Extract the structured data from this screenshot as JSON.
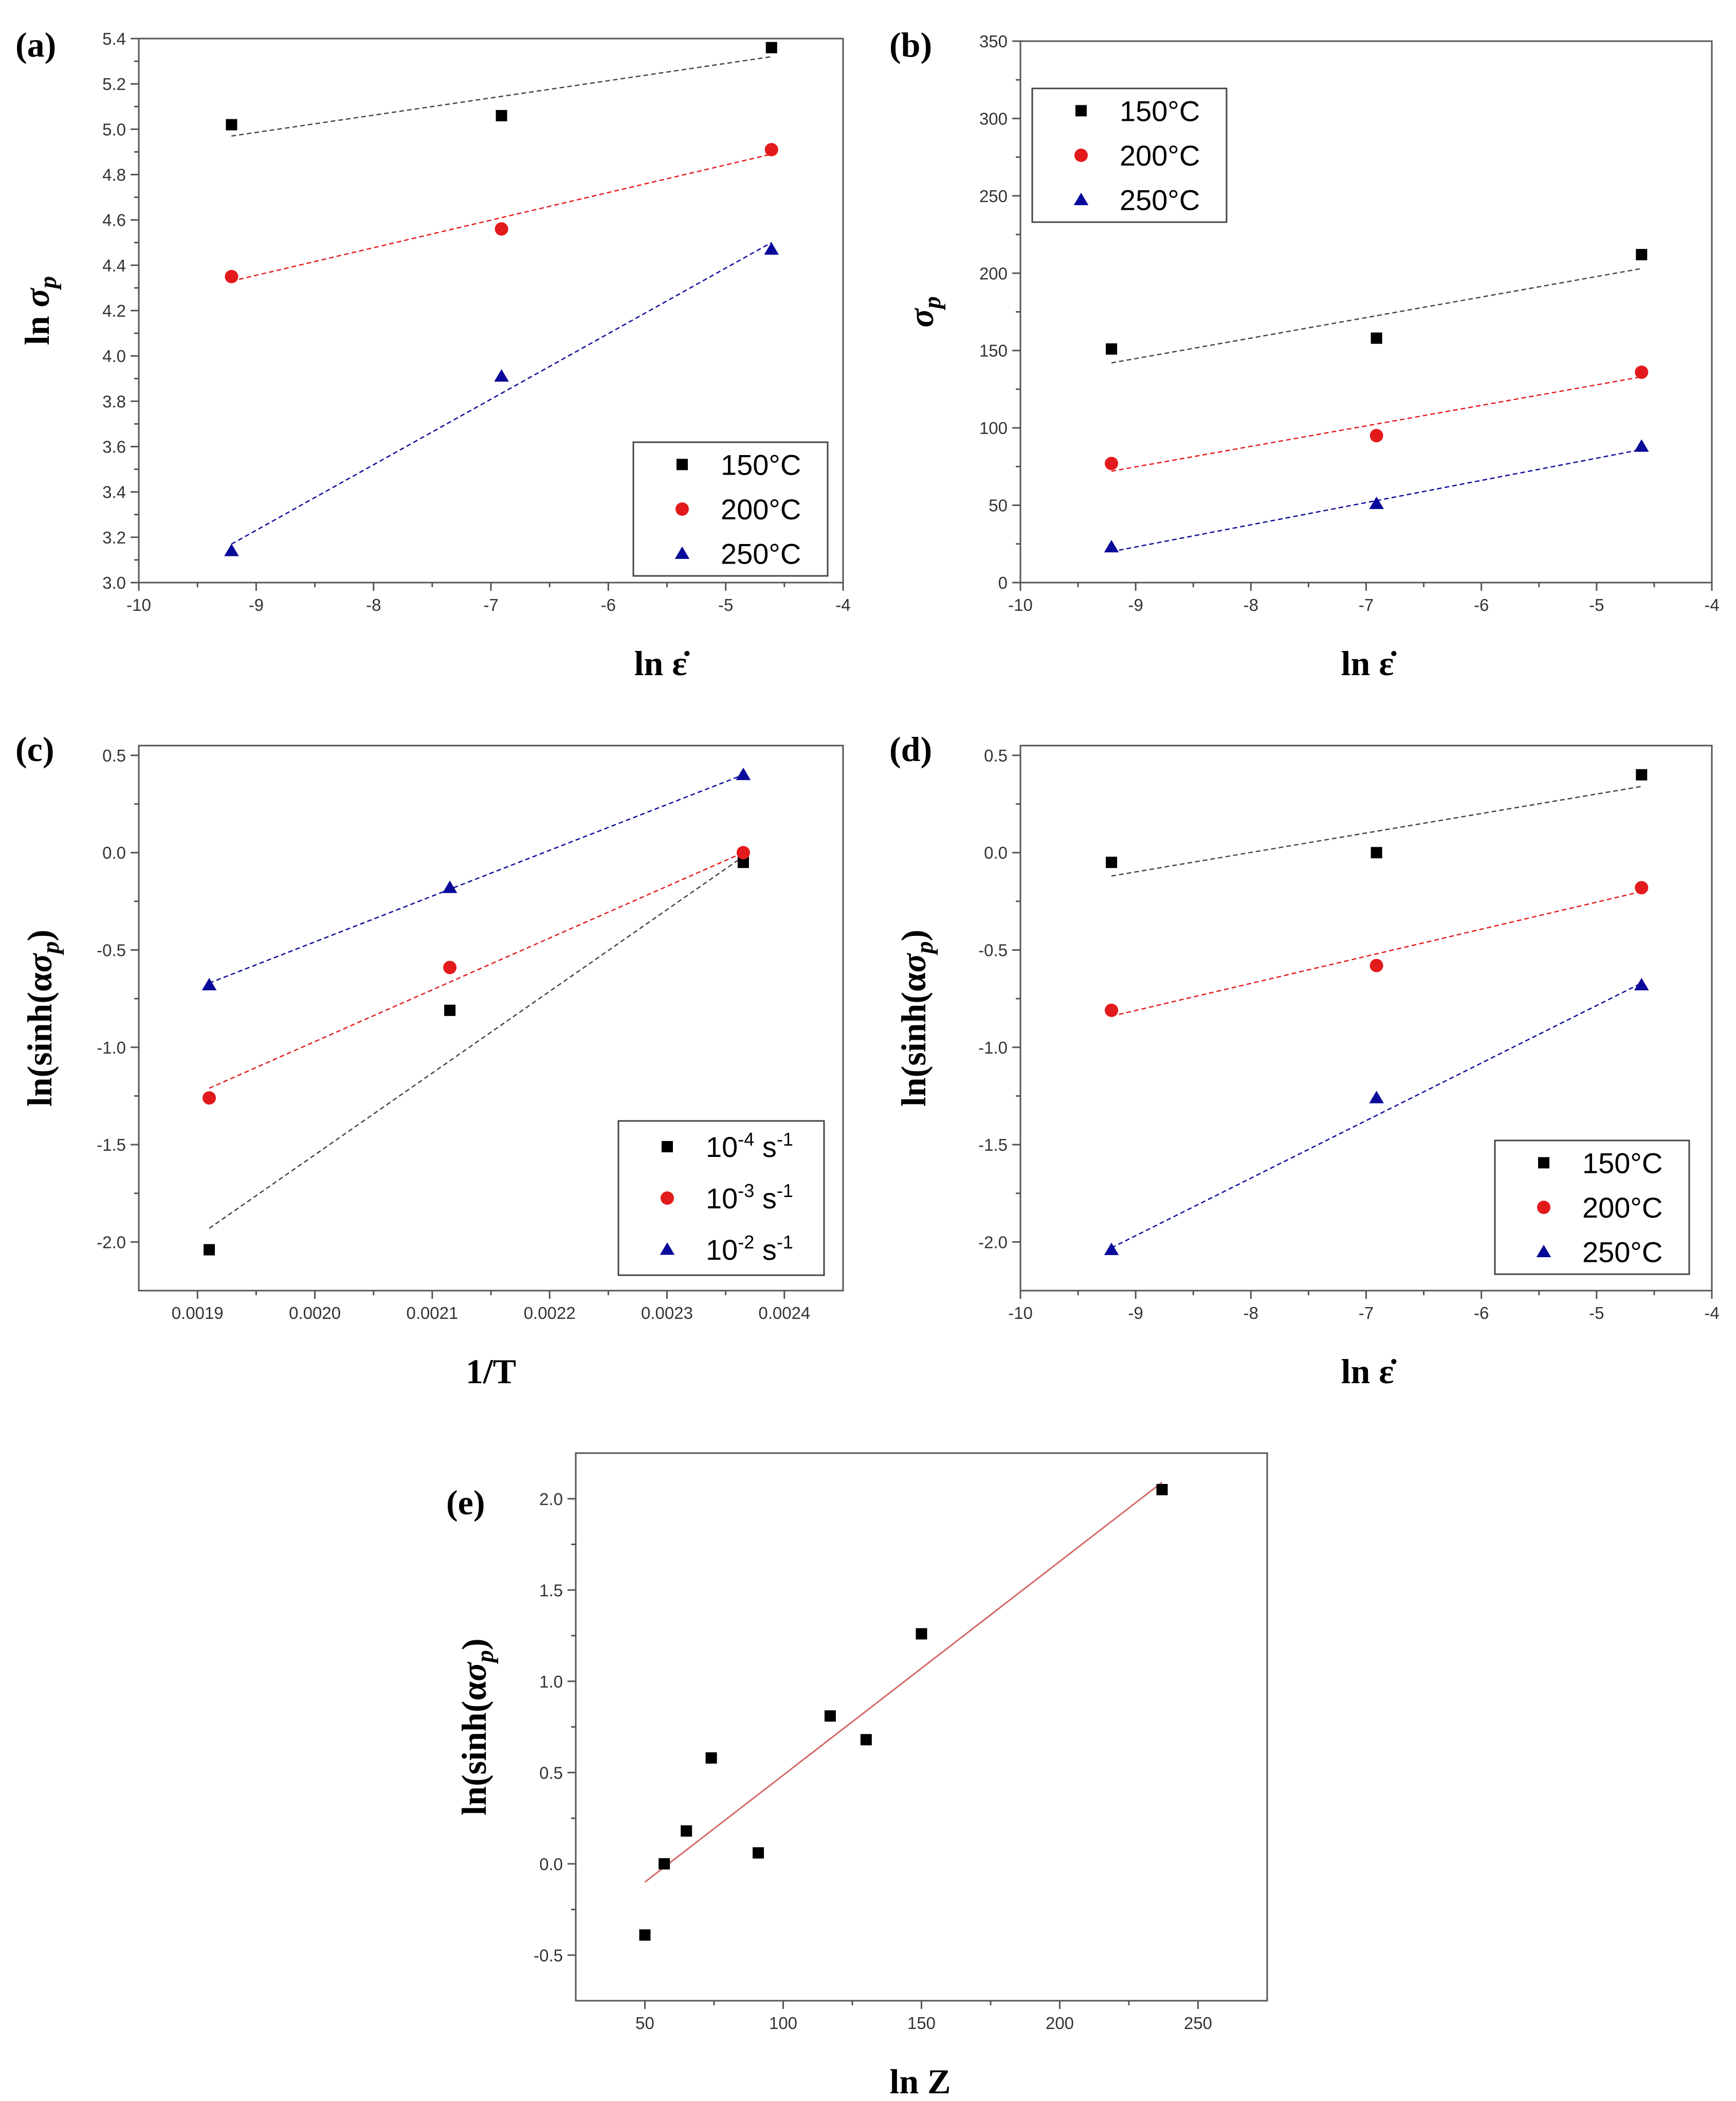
{
  "colors": {
    "black": "#000000",
    "red": "#e31a1c",
    "blue": "#0a0a9a",
    "fit_red_e": "#d46a6a",
    "fit_gray": "#555555"
  },
  "chart_data": [
    {
      "id": "a",
      "panel_label": "(a)",
      "type": "scatter",
      "xlabel": "ln ε̇",
      "ylabel": "ln σp",
      "xlim": [
        -10,
        -4
      ],
      "ylim": [
        3.0,
        5.4
      ],
      "xticks": [
        -10,
        -9,
        -8,
        -7,
        -6,
        -5,
        -4
      ],
      "xtick_labels": [
        "-10",
        "-9",
        "-8",
        "-7",
        "-6",
        "-5",
        "-4"
      ],
      "yticks": [
        3.0,
        3.2,
        3.4,
        3.6,
        3.8,
        4.0,
        4.2,
        4.4,
        4.6,
        4.8,
        5.0,
        5.2,
        5.4
      ],
      "ytick_labels": [
        "3.0",
        "3.2",
        "3.4",
        "3.6",
        "3.8",
        "4.0",
        "4.2",
        "4.4",
        "4.6",
        "4.8",
        "5.0",
        "5.2",
        "5.4"
      ],
      "legend_position": "bottom-right",
      "series": [
        {
          "name": "150°C",
          "marker": "square",
          "color": "#000000",
          "x": [
            -9.21,
            -6.91,
            -4.61
          ],
          "y": [
            5.02,
            5.06,
            5.36
          ],
          "fit": {
            "x": [
              -9.21,
              -4.61
            ],
            "y": [
              4.97,
              5.32
            ]
          }
        },
        {
          "name": "200°C",
          "marker": "circle",
          "color": "#e31a1c",
          "x": [
            -9.21,
            -6.91,
            -4.61
          ],
          "y": [
            4.35,
            4.56,
            4.91
          ],
          "fit": {
            "x": [
              -9.21,
              -4.61
            ],
            "y": [
              4.33,
              4.89
            ]
          }
        },
        {
          "name": "250°C",
          "marker": "triangle",
          "color": "#0a0a9a",
          "x": [
            -9.21,
            -6.91,
            -4.61
          ],
          "y": [
            3.14,
            3.91,
            4.47
          ],
          "fit": {
            "x": [
              -9.21,
              -4.61
            ],
            "y": [
              3.17,
              4.5
            ]
          }
        }
      ]
    },
    {
      "id": "b",
      "panel_label": "(b)",
      "type": "scatter",
      "xlabel": "ln ε̇",
      "ylabel": "σp",
      "xlim": [
        -10,
        -4
      ],
      "ylim": [
        0,
        350
      ],
      "xticks": [
        -10,
        -9,
        -8,
        -7,
        -6,
        -5,
        -4
      ],
      "xtick_labels": [
        "-10",
        "-9",
        "-8",
        "-7",
        "-6",
        "-5",
        "-4"
      ],
      "yticks": [
        0,
        50,
        100,
        150,
        200,
        250,
        300,
        350
      ],
      "ytick_labels": [
        "0",
        "50",
        "100",
        "150",
        "200",
        "250",
        "300",
        "350"
      ],
      "legend_position": "top-left",
      "series": [
        {
          "name": "150°C",
          "marker": "square",
          "color": "#000000",
          "x": [
            -9.21,
            -6.91,
            -4.61
          ],
          "y": [
            151,
            158,
            212
          ],
          "fit": {
            "x": [
              -9.21,
              -4.61
            ],
            "y": [
              142,
              203
            ]
          }
        },
        {
          "name": "200°C",
          "marker": "circle",
          "color": "#e31a1c",
          "x": [
            -9.21,
            -6.91,
            -4.61
          ],
          "y": [
            77,
            95,
            136
          ],
          "fit": {
            "x": [
              -9.21,
              -4.61
            ],
            "y": [
              72,
              133
            ]
          }
        },
        {
          "name": "250°C",
          "marker": "triangle",
          "color": "#0a0a9a",
          "x": [
            -9.21,
            -6.91,
            -4.61
          ],
          "y": [
            23,
            51,
            88
          ],
          "fit": {
            "x": [
              -9.21,
              -4.61
            ],
            "y": [
              20,
              86
            ]
          }
        }
      ]
    },
    {
      "id": "c",
      "panel_label": "(c)",
      "type": "scatter",
      "xlabel": "1/T",
      "ylabel": "ln(sinh(ασp)",
      "xlim": [
        0.00185,
        0.00245
      ],
      "ylim": [
        -2.25,
        0.55
      ],
      "xticks": [
        0.0019,
        0.002,
        0.0021,
        0.0022,
        0.0023,
        0.0024
      ],
      "xtick_labels": [
        "0.0019",
        "0.0020",
        "0.0021",
        "0.0022",
        "0.0023",
        "0.0024"
      ],
      "yticks": [
        -2.0,
        -1.5,
        -1.0,
        -0.5,
        0.0,
        0.5
      ],
      "ytick_labels": [
        "-2.0",
        "-1.5",
        "-1.0",
        "-0.5",
        "0.0",
        "0.5"
      ],
      "legend_position": "bottom-right",
      "series": [
        {
          "name": "10",
          "name_exp": "-4",
          "name_unit": " s",
          "name_unit_exp": "-1",
          "marker": "square",
          "color": "#000000",
          "x": [
            0.00191,
            0.002115,
            0.002365
          ],
          "y": [
            -2.04,
            -0.81,
            -0.05
          ],
          "fit": {
            "x": [
              0.00191,
              0.002365
            ],
            "y": [
              -1.93,
              -0.02
            ]
          }
        },
        {
          "name": "10",
          "name_exp": "-3",
          "name_unit": " s",
          "name_unit_exp": "-1",
          "marker": "circle",
          "color": "#e31a1c",
          "x": [
            0.00191,
            0.002115,
            0.002365
          ],
          "y": [
            -1.26,
            -0.59,
            0.0
          ],
          "fit": {
            "x": [
              0.00191,
              0.002365
            ],
            "y": [
              -1.21,
              0.0
            ]
          }
        },
        {
          "name": "10",
          "name_exp": "-2",
          "name_unit": " s",
          "name_unit_exp": "-1",
          "marker": "triangle",
          "color": "#0a0a9a",
          "x": [
            0.00191,
            0.002115,
            0.002365
          ],
          "y": [
            -0.68,
            -0.18,
            0.4
          ],
          "fit": {
            "x": [
              0.00191,
              0.002365
            ],
            "y": [
              -0.67,
              0.4
            ]
          }
        }
      ]
    },
    {
      "id": "d",
      "panel_label": "(d)",
      "type": "scatter",
      "xlabel": "ln ε̇",
      "ylabel": "ln(sinh(ασp)",
      "xlim": [
        -10,
        -4
      ],
      "ylim": [
        -2.25,
        0.55
      ],
      "xticks": [
        -10,
        -9,
        -8,
        -7,
        -6,
        -5,
        -4
      ],
      "xtick_labels": [
        "-10",
        "-9",
        "-8",
        "-7",
        "-6",
        "-5",
        "-4"
      ],
      "yticks": [
        -2.0,
        -1.5,
        -1.0,
        -0.5,
        0.0,
        0.5
      ],
      "ytick_labels": [
        "-2.0",
        "-1.5",
        "-1.0",
        "-0.5",
        "0.0",
        "0.5"
      ],
      "legend_position": "bottom-right",
      "series": [
        {
          "name": "150°C",
          "marker": "square",
          "color": "#000000",
          "x": [
            -9.21,
            -6.91,
            -4.61
          ],
          "y": [
            -0.05,
            0.0,
            0.4
          ],
          "fit": {
            "x": [
              -9.21,
              -4.61
            ],
            "y": [
              -0.12,
              0.34
            ]
          }
        },
        {
          "name": "200°C",
          "marker": "circle",
          "color": "#e31a1c",
          "x": [
            -9.21,
            -6.91,
            -4.61
          ],
          "y": [
            -0.81,
            -0.58,
            -0.18
          ],
          "fit": {
            "x": [
              -9.21,
              -4.61
            ],
            "y": [
              -0.84,
              -0.2
            ]
          }
        },
        {
          "name": "250°C",
          "marker": "triangle",
          "color": "#0a0a9a",
          "x": [
            -9.21,
            -6.91,
            -4.61
          ],
          "y": [
            -2.04,
            -1.26,
            -0.68
          ],
          "fit": {
            "x": [
              -9.21,
              -4.61
            ],
            "y": [
              -2.03,
              -0.67
            ]
          }
        }
      ]
    },
    {
      "id": "e",
      "panel_label": "(e)",
      "type": "scatter",
      "xlabel": "ln Z",
      "ylabel": "ln(sinh(ασp)",
      "xlim": [
        25,
        275
      ],
      "ylim": [
        -0.75,
        2.25
      ],
      "xticks": [
        50,
        100,
        150,
        200,
        250
      ],
      "xtick_labels": [
        "50",
        "100",
        "150",
        "200",
        "250"
      ],
      "yticks": [
        -0.5,
        0.0,
        0.5,
        1.0,
        1.5,
        2.0
      ],
      "ytick_labels": [
        "-0.5",
        "0.0",
        "0.5",
        "1.0",
        "1.5",
        "2.0"
      ],
      "legend_position": "none",
      "series": [
        {
          "name": "",
          "marker": "square",
          "color": "#000000",
          "x": [
            50,
            57,
            65,
            74,
            91,
            117,
            130,
            150,
            237
          ],
          "y": [
            -0.39,
            0.0,
            0.18,
            0.58,
            0.06,
            0.81,
            0.68,
            1.26,
            2.05
          ],
          "fit": {
            "x": [
              50,
              237
            ],
            "y": [
              -0.1,
              2.09
            ],
            "solid": true,
            "color": "#d46a6a"
          }
        }
      ]
    }
  ]
}
